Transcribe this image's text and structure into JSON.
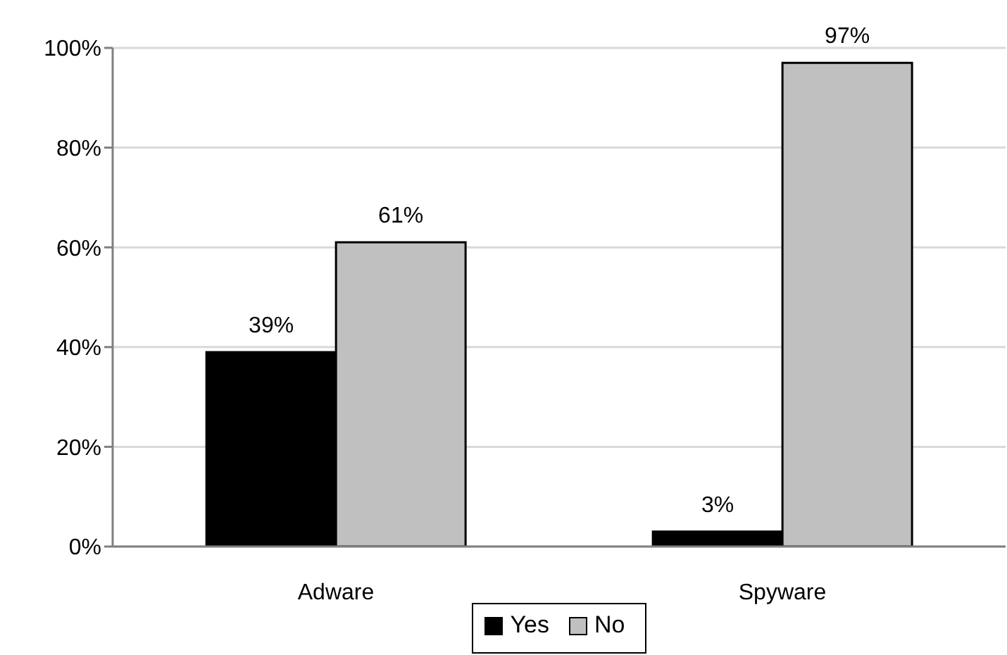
{
  "chart_data": {
    "type": "bar",
    "categories": [
      "Adware",
      "Spyware"
    ],
    "series": [
      {
        "name": "Yes",
        "color": "#000000",
        "values": [
          39,
          3
        ],
        "value_labels": [
          "39%",
          "3%"
        ]
      },
      {
        "name": "No",
        "color": "#c0c0c0",
        "values": [
          61,
          97
        ],
        "value_labels": [
          "61%",
          "97%"
        ]
      }
    ],
    "ylim": [
      0,
      100
    ],
    "yticks": [
      {
        "value": 0,
        "label": "0%"
      },
      {
        "value": 20,
        "label": "20%"
      },
      {
        "value": 40,
        "label": "40%"
      },
      {
        "value": 60,
        "label": "60%"
      },
      {
        "value": 80,
        "label": "80%"
      },
      {
        "value": 100,
        "label": "100%"
      }
    ],
    "grid": "y",
    "legend": "bottom"
  }
}
